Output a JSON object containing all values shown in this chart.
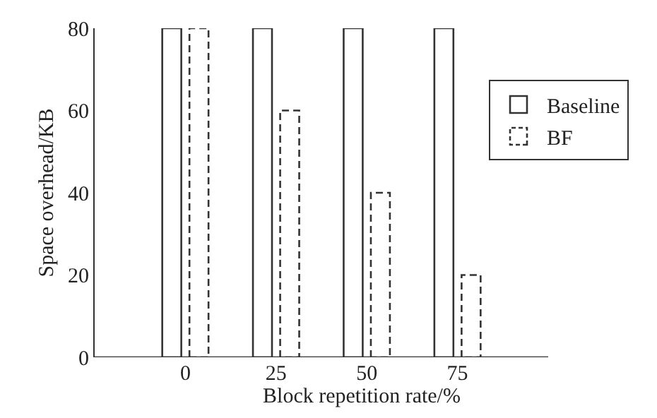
{
  "chart_data": {
    "type": "bar",
    "xlabel": "Block repetition rate/%",
    "ylabel": "Space overhead/KB",
    "categories": [
      "0",
      "25",
      "50",
      "75"
    ],
    "series": [
      {
        "name": "Baseline",
        "color": "#ffffff",
        "line_style": "solid",
        "values": [
          80,
          80,
          80,
          80
        ]
      },
      {
        "name": "BF",
        "color": "#ffffff",
        "line_style": "dashed",
        "values": [
          80,
          60,
          40,
          20
        ]
      }
    ],
    "ylim": [
      0,
      80
    ],
    "yticks": [
      0,
      20,
      40,
      60,
      80
    ],
    "grid": false,
    "legend": "right"
  }
}
